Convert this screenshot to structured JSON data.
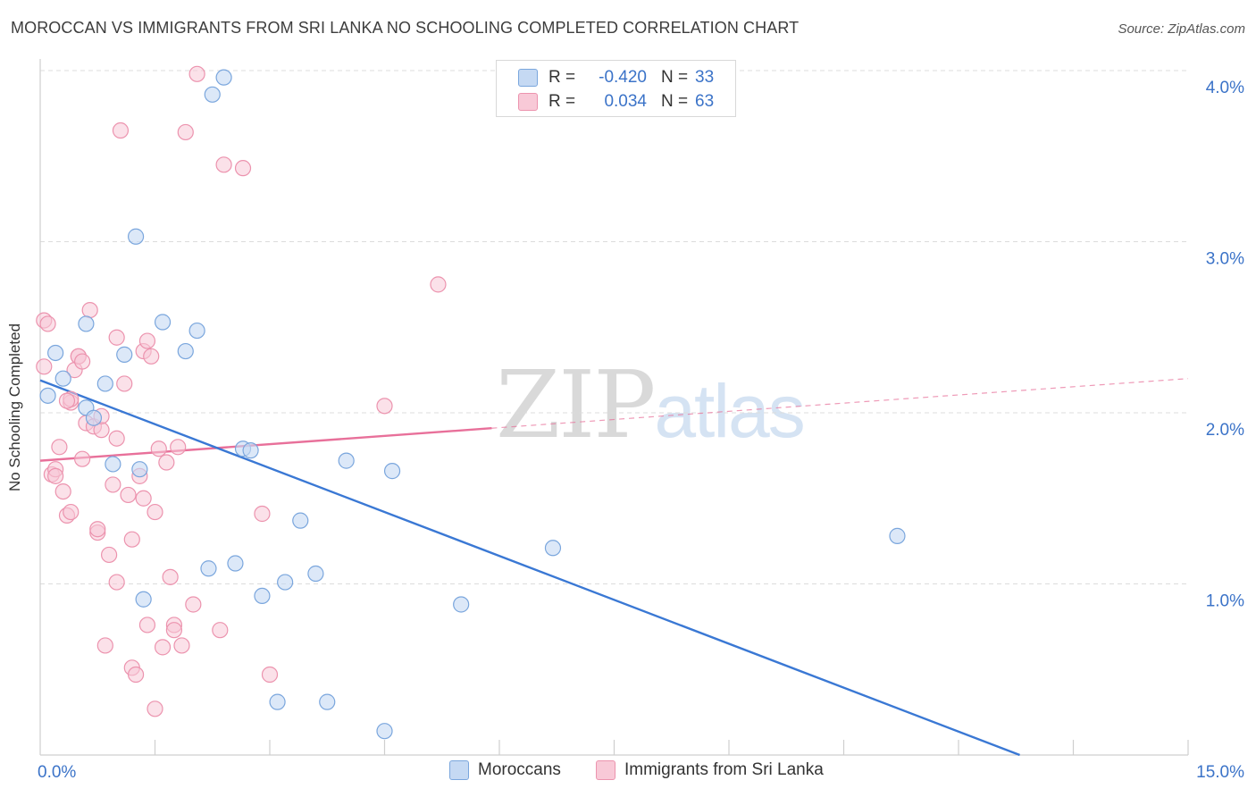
{
  "title": "MOROCCAN VS IMMIGRANTS FROM SRI LANKA NO SCHOOLING COMPLETED CORRELATION CHART",
  "source": "Source: ZipAtlas.com",
  "watermark": {
    "part1": "ZIP",
    "part2": "atlas"
  },
  "legend_top": {
    "rows": [
      {
        "r_label": "R =",
        "r_value": "-0.420",
        "n_label": "N =",
        "n_value": "33"
      },
      {
        "r_label": "R =",
        "r_value": "0.034",
        "n_label": "N =",
        "n_value": "63"
      }
    ]
  },
  "legend_bottom": {
    "items": [
      "Moroccans",
      "Immigrants from Sri Lanka"
    ]
  },
  "colors": {
    "blue_fill": "#c5d9f3",
    "blue_stroke": "#7aa6dd",
    "blue_line": "#3a78d4",
    "pink_fill": "#f8c9d7",
    "pink_stroke": "#ec93ae",
    "pink_line": "#e8709a",
    "tick_label": "#3b73c8"
  },
  "chart_data": {
    "type": "scatter",
    "title": "MOROCCAN VS IMMIGRANTS FROM SRI LANKA NO SCHOOLING COMPLETED CORRELATION CHART",
    "xlabel": "",
    "ylabel": "No Schooling Completed",
    "xlim": [
      0,
      15
    ],
    "ylim": [
      0,
      4.0
    ],
    "x_tick_labels": [
      "0.0%",
      "15.0%"
    ],
    "y_ticks": [
      1.0,
      2.0,
      3.0,
      4.0
    ],
    "y_tick_labels": [
      "1.0%",
      "2.0%",
      "3.0%",
      "4.0%"
    ],
    "grid": true,
    "series": [
      {
        "name": "Moroccans",
        "r": -0.42,
        "n": 33,
        "trend": {
          "x": [
            0.0,
            12.8
          ],
          "y": [
            2.19,
            0.0
          ],
          "dashed_extension": false
        },
        "points": [
          [
            0.1,
            2.1
          ],
          [
            0.2,
            2.35
          ],
          [
            0.3,
            2.2
          ],
          [
            0.6,
            2.52
          ],
          [
            0.6,
            2.03
          ],
          [
            0.7,
            1.97
          ],
          [
            0.95,
            1.7
          ],
          [
            0.85,
            2.17
          ],
          [
            1.1,
            2.34
          ],
          [
            1.25,
            3.03
          ],
          [
            1.3,
            1.67
          ],
          [
            1.35,
            0.91
          ],
          [
            1.6,
            2.53
          ],
          [
            1.9,
            2.36
          ],
          [
            2.05,
            2.48
          ],
          [
            2.2,
            1.09
          ],
          [
            2.25,
            3.86
          ],
          [
            2.4,
            3.96
          ],
          [
            2.55,
            1.12
          ],
          [
            2.65,
            1.79
          ],
          [
            2.75,
            1.78
          ],
          [
            2.9,
            0.93
          ],
          [
            3.1,
            0.31
          ],
          [
            3.2,
            1.01
          ],
          [
            3.4,
            1.37
          ],
          [
            3.6,
            1.06
          ],
          [
            3.75,
            0.31
          ],
          [
            4.0,
            1.72
          ],
          [
            4.5,
            0.14
          ],
          [
            4.6,
            1.66
          ],
          [
            5.5,
            0.88
          ],
          [
            6.7,
            1.21
          ],
          [
            11.2,
            1.28
          ]
        ]
      },
      {
        "name": "Immigrants from Sri Lanka",
        "r": 0.034,
        "n": 63,
        "trend": {
          "x": [
            0.0,
            5.9
          ],
          "y": [
            1.72,
            1.91
          ],
          "dashed_extension": {
            "x": [
              5.9,
              15.0
            ],
            "y": [
              1.91,
              2.2
            ]
          }
        },
        "points": [
          [
            0.05,
            2.27
          ],
          [
            0.05,
            2.54
          ],
          [
            0.1,
            2.52
          ],
          [
            0.15,
            1.64
          ],
          [
            0.2,
            1.67
          ],
          [
            0.2,
            1.63
          ],
          [
            0.25,
            1.8
          ],
          [
            0.3,
            1.54
          ],
          [
            0.35,
            1.4
          ],
          [
            0.4,
            1.42
          ],
          [
            0.4,
            2.06
          ],
          [
            0.4,
            2.08
          ],
          [
            0.45,
            2.25
          ],
          [
            0.5,
            2.33
          ],
          [
            0.55,
            1.73
          ],
          [
            0.6,
            1.94
          ],
          [
            0.5,
            2.33
          ],
          [
            0.65,
            2.6
          ],
          [
            0.7,
            1.92
          ],
          [
            0.75,
            1.3
          ],
          [
            0.75,
            1.32
          ],
          [
            0.8,
            1.9
          ],
          [
            0.8,
            1.98
          ],
          [
            0.85,
            0.64
          ],
          [
            0.9,
            1.17
          ],
          [
            0.95,
            1.58
          ],
          [
            1.0,
            1.85
          ],
          [
            1.0,
            1.01
          ],
          [
            1.0,
            2.44
          ],
          [
            1.05,
            3.65
          ],
          [
            1.1,
            2.17
          ],
          [
            1.15,
            1.52
          ],
          [
            1.2,
            1.26
          ],
          [
            1.2,
            0.51
          ],
          [
            1.25,
            0.47
          ],
          [
            1.3,
            1.63
          ],
          [
            1.35,
            1.5
          ],
          [
            1.35,
            2.36
          ],
          [
            1.4,
            0.76
          ],
          [
            1.4,
            2.42
          ],
          [
            1.45,
            2.33
          ],
          [
            1.5,
            1.42
          ],
          [
            1.5,
            0.27
          ],
          [
            1.55,
            1.79
          ],
          [
            1.6,
            0.63
          ],
          [
            1.65,
            1.71
          ],
          [
            1.7,
            1.04
          ],
          [
            1.75,
            0.76
          ],
          [
            1.75,
            0.73
          ],
          [
            1.8,
            1.8
          ],
          [
            1.85,
            0.64
          ],
          [
            1.9,
            3.64
          ],
          [
            2.0,
            0.88
          ],
          [
            2.05,
            3.98
          ],
          [
            2.35,
            0.73
          ],
          [
            2.4,
            3.45
          ],
          [
            2.65,
            3.43
          ],
          [
            2.9,
            1.41
          ],
          [
            3.0,
            0.47
          ],
          [
            4.5,
            2.04
          ],
          [
            5.2,
            2.75
          ],
          [
            0.35,
            2.07
          ],
          [
            0.55,
            2.3
          ]
        ]
      }
    ]
  }
}
